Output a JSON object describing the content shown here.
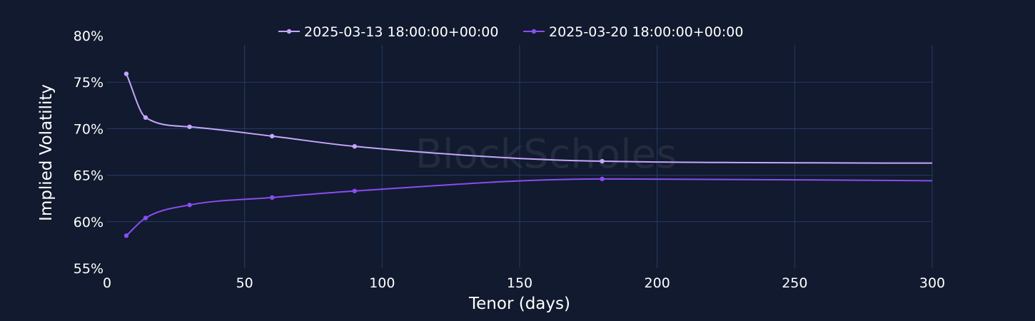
{
  "watermark": "BlockScholes",
  "chart_data": {
    "type": "line",
    "title": "",
    "xlabel": "Tenor (days)",
    "ylabel": "Implied Volatility",
    "xlim": [
      0,
      300
    ],
    "ylim": [
      55,
      80
    ],
    "x_ticks": [
      0,
      50,
      100,
      150,
      200,
      250,
      300
    ],
    "y_ticks": [
      55,
      60,
      65,
      70,
      75,
      80
    ],
    "y_tick_suffix": "%",
    "grid": true,
    "legend_position": "top-center",
    "series": [
      {
        "name": "2025-03-13 18:00:00+00:00",
        "color": "#c4a6ff",
        "points": [
          [
            7,
            75.9
          ],
          [
            14,
            71.2
          ],
          [
            30,
            70.2
          ],
          [
            60,
            69.2
          ],
          [
            90,
            68.1
          ],
          [
            180,
            66.5
          ],
          [
            300,
            66.3
          ]
        ],
        "markers": [
          7,
          14,
          30,
          60,
          90,
          180
        ]
      },
      {
        "name": "2025-03-20 18:00:00+00:00",
        "color": "#8a4cf2",
        "points": [
          [
            7,
            58.5
          ],
          [
            14,
            60.4
          ],
          [
            30,
            61.8
          ],
          [
            60,
            62.6
          ],
          [
            90,
            63.3
          ],
          [
            180,
            64.6
          ],
          [
            300,
            64.4
          ]
        ],
        "markers": [
          7,
          14,
          30,
          60,
          90,
          180
        ]
      }
    ]
  }
}
